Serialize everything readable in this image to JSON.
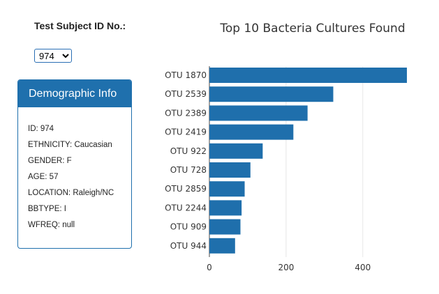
{
  "selector": {
    "label": "Test Subject ID No.:",
    "selected": "974"
  },
  "demographic": {
    "header": "Demographic Info",
    "rows": [
      "ID: 974",
      "ETHNICITY: Caucasian",
      "GENDER: F",
      "AGE: 57",
      "LOCATION: Raleigh/NC",
      "BBTYPE: I",
      "WFREQ: null"
    ]
  },
  "colors": {
    "bar": "#1f6fac",
    "panel": "#1f70ad"
  },
  "chart_data": {
    "type": "bar",
    "orientation": "horizontal",
    "title": "Top 10 Bacteria Cultures Found",
    "categories": [
      "OTU 1870",
      "OTU 2539",
      "OTU 2389",
      "OTU 2419",
      "OTU 922",
      "OTU 728",
      "OTU 2859",
      "OTU 2244",
      "OTU 909",
      "OTU 944"
    ],
    "values": [
      515,
      323,
      256,
      219,
      139,
      107,
      92,
      84,
      81,
      67
    ],
    "xlim": [
      0,
      515
    ],
    "xticks": [
      0,
      200,
      400
    ],
    "grid": true,
    "legend": "none"
  }
}
